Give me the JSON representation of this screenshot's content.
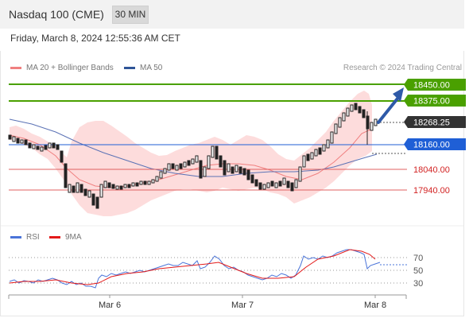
{
  "header": {
    "title": "Nasdaq 100 (CME)",
    "timeframe": "30 MIN"
  },
  "datetime": "Friday, March 8, 2024 12:55:36 AM CET",
  "legend": {
    "bollinger": {
      "label": "MA 20 + Bollinger Bands",
      "color": "#f08080"
    },
    "ma50": {
      "label": "MA 50",
      "color": "#2f5597"
    }
  },
  "credit": "Research © 2024 Trading Central",
  "levels": [
    {
      "label": "18450.00",
      "price": 18450,
      "kind": "resistance",
      "color": "#4aa000"
    },
    {
      "label": "18375.00",
      "price": 18375,
      "kind": "resistance",
      "color": "#4aa000"
    },
    {
      "label": "18268.25",
      "price": 18268.25,
      "kind": "last",
      "color": "#333333"
    },
    {
      "label": "18160.00",
      "price": 18160,
      "kind": "pivot",
      "color": "#1f5fd6"
    },
    {
      "label": "18040.00",
      "price": 18040,
      "kind": "support",
      "color": "#d22222"
    },
    {
      "label": "17940.00",
      "price": 17940,
      "kind": "support",
      "color": "#d22222"
    }
  ],
  "indicator": {
    "rsi": {
      "label": "RSI",
      "color": "#4a74d9"
    },
    "ma9": {
      "label": "9MA",
      "color": "#e31a1a"
    },
    "scale": [
      "70",
      "50",
      "30"
    ]
  },
  "xaxis": [
    "Mar 6",
    "Mar 7",
    "Mar 8"
  ]
}
